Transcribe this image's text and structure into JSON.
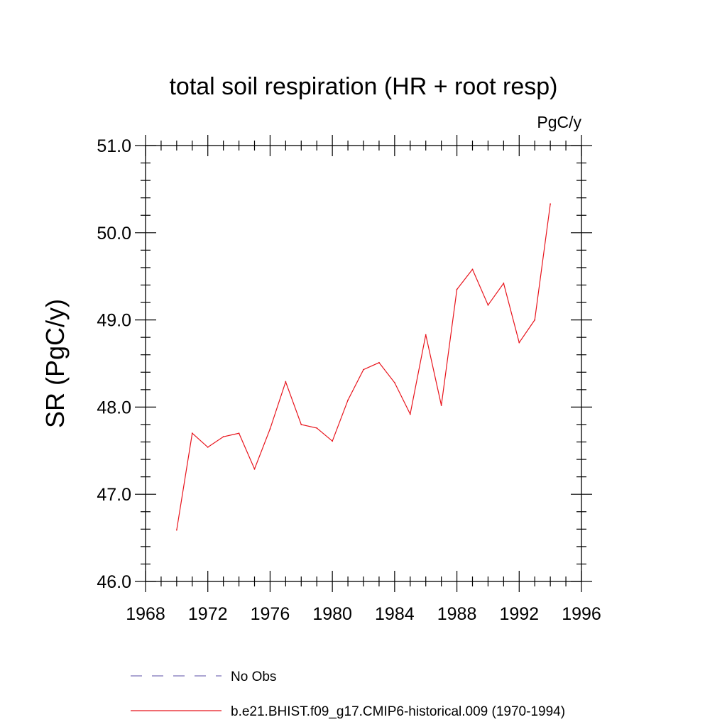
{
  "chart_data": {
    "type": "line",
    "title": "total soil respiration (HR + root resp)",
    "units": "PgC/y",
    "xlabel": "",
    "ylabel": "SR  (PgC/y)",
    "xlim": [
      1968,
      1996
    ],
    "ylim": [
      46.0,
      51.0
    ],
    "xticks": [
      1968,
      1972,
      1976,
      1980,
      1984,
      1988,
      1992,
      1996
    ],
    "xtick_labels": [
      "1968",
      "1972",
      "1976",
      "1980",
      "1984",
      "1988",
      "1992",
      "1996"
    ],
    "yticks": [
      46.0,
      47.0,
      48.0,
      49.0,
      50.0,
      51.0
    ],
    "ytick_labels": [
      "46.0",
      "47.0",
      "48.0",
      "49.0",
      "50.0",
      "51.0"
    ],
    "grid": false,
    "legend_placement": "bottom",
    "series": [
      {
        "name": "No Obs",
        "color": "#7a72b8",
        "style": "dashed",
        "x": [],
        "y": []
      },
      {
        "name": "b.e21.BHIST.f09_g17.CMIP6-historical.009 (1970-1994)",
        "color": "#e8141c",
        "style": "solid",
        "x": [
          1970,
          1971,
          1972,
          1973,
          1974,
          1975,
          1976,
          1977,
          1978,
          1979,
          1980,
          1981,
          1982,
          1983,
          1984,
          1985,
          1986,
          1987,
          1988,
          1989,
          1990,
          1991,
          1992,
          1993,
          1994
        ],
        "y": [
          46.59,
          47.7,
          47.54,
          47.66,
          47.7,
          47.29,
          47.75,
          48.29,
          47.8,
          47.76,
          47.61,
          48.08,
          48.43,
          48.51,
          48.28,
          47.92,
          48.83,
          48.02,
          49.35,
          49.58,
          49.17,
          49.42,
          48.74,
          49.0,
          50.33
        ]
      }
    ]
  }
}
